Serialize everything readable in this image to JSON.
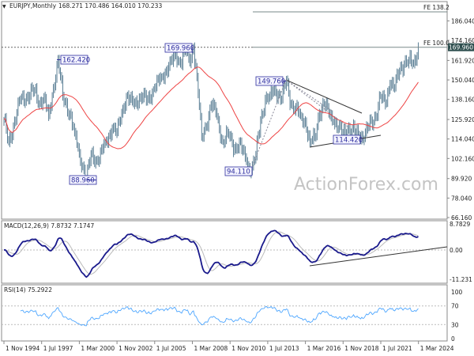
{
  "header": {
    "symbol": "EURJPY,Monthly",
    "ohlc": "168.271 170.486 164.010 170.233"
  },
  "watermark": "ActionForex.com",
  "current_price": "169.960",
  "colors": {
    "bars": "#5b7f95",
    "ma": "#ee4444",
    "macd": "#1a1a8c",
    "signal": "#bbbbbb",
    "rsi": "#4da6ff",
    "annotation": "#2e2e9e"
  },
  "chart_data": [
    {
      "type": "line",
      "title": "EURJPY, Monthly",
      "subtype": "ohlc-bars",
      "x_start": "Nov 1994",
      "x_ticks": [
        "1 Nov 1994",
        "1 Jul 1997",
        "1 Mar 2000",
        "1 Nov 2002",
        "1 Jul 2005",
        "1 Mar 2008",
        "1 Nov 2010",
        "1 Jul 2013",
        "1 Mar 2016",
        "1 Nov 2018",
        "1 Jul 2021",
        "1 Mar 2024"
      ],
      "y_ticks": [
        "186.040",
        "174.160",
        "161.920",
        "150.040",
        "138.160",
        "125.920",
        "114.040",
        "102.160",
        "89.920",
        "78.040",
        "66.160"
      ],
      "ylim": [
        66.16,
        192
      ],
      "price_waypoints_month_index_price": [
        [
          0,
          126
        ],
        [
          4,
          112
        ],
        [
          8,
          122
        ],
        [
          14,
          138
        ],
        [
          20,
          140
        ],
        [
          26,
          144
        ],
        [
          30,
          136
        ],
        [
          34,
          140
        ],
        [
          38,
          128
        ],
        [
          42,
          145
        ],
        [
          46,
          162.42
        ],
        [
          50,
          140
        ],
        [
          56,
          130
        ],
        [
          60,
          118
        ],
        [
          64,
          105
        ],
        [
          67,
          98
        ],
        [
          70,
          88.96
        ],
        [
          74,
          105
        ],
        [
          80,
          100
        ],
        [
          86,
          112
        ],
        [
          92,
          120
        ],
        [
          96,
          118
        ],
        [
          100,
          130
        ],
        [
          104,
          140
        ],
        [
          110,
          135
        ],
        [
          116,
          140
        ],
        [
          122,
          138
        ],
        [
          128,
          145
        ],
        [
          134,
          152
        ],
        [
          140,
          158
        ],
        [
          146,
          165
        ],
        [
          150,
          160
        ],
        [
          154,
          168
        ],
        [
          158,
          160
        ],
        [
          161,
          169.96
        ],
        [
          164,
          152
        ],
        [
          168,
          115
        ],
        [
          172,
          122
        ],
        [
          176,
          135
        ],
        [
          180,
          130
        ],
        [
          186,
          112
        ],
        [
          190,
          118
        ],
        [
          196,
          108
        ],
        [
          200,
          112
        ],
        [
          206,
          100
        ],
        [
          210,
          94.11
        ],
        [
          214,
          104
        ],
        [
          218,
          125
        ],
        [
          222,
          138
        ],
        [
          226,
          140
        ],
        [
          230,
          145
        ],
        [
          236,
          138
        ],
        [
          240,
          149.76
        ],
        [
          244,
          135
        ],
        [
          248,
          133
        ],
        [
          252,
          128
        ],
        [
          256,
          125
        ],
        [
          260,
          112
        ],
        [
          264,
          115
        ],
        [
          268,
          130
        ],
        [
          272,
          135
        ],
        [
          276,
          130
        ],
        [
          280,
          125
        ],
        [
          284,
          120
        ],
        [
          288,
          118
        ],
        [
          292,
          120
        ],
        [
          296,
          120
        ],
        [
          302,
          116
        ],
        [
          306,
          114.42
        ],
        [
          310,
          122
        ],
        [
          316,
          128
        ],
        [
          320,
          140
        ],
        [
          324,
          135
        ],
        [
          328,
          148
        ],
        [
          332,
          145
        ],
        [
          336,
          156
        ],
        [
          340,
          160
        ],
        [
          344,
          162
        ],
        [
          348,
          160
        ],
        [
          352,
          170.23
        ]
      ],
      "annotations": [
        "162.420",
        "169.960",
        "88.960",
        "94.110",
        "149.760",
        "114.420"
      ],
      "levels": [
        {
          "label": "FE 100.0",
          "value": 169.96
        },
        {
          "label": "FE 138.2",
          "value": 191.2
        }
      ]
    },
    {
      "type": "line",
      "title": "MACD(12,26,9) 7.8732 7.1747",
      "y_ticks": [
        "8.7829",
        "0.00",
        "-11.231"
      ],
      "ylim": [
        -11.231,
        8.7829
      ],
      "series": [
        {
          "name": "MACD",
          "last": 7.8732
        },
        {
          "name": "Signal",
          "last": 7.1747
        }
      ]
    },
    {
      "type": "line",
      "title": "RSI(14) 75.2922",
      "y_ticks": [
        "100",
        "70",
        "30",
        "0"
      ],
      "ylim": [
        0,
        100
      ],
      "series": [
        {
          "name": "RSI(14)",
          "last": 75.2922
        }
      ]
    }
  ]
}
